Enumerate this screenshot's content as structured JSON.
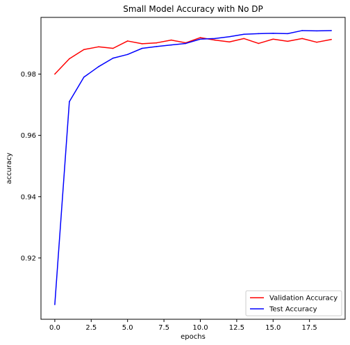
{
  "chart_data": {
    "type": "line",
    "title": "Small Model Accuracy with No DP",
    "xlabel": "epochs",
    "ylabel": "accuracy",
    "xlim": [
      -0.95,
      19.95
    ],
    "ylim": [
      0.9,
      0.9985
    ],
    "xticks": [
      0.0,
      2.5,
      5.0,
      7.5,
      10.0,
      12.5,
      15.0,
      17.5
    ],
    "xtick_labels": [
      "0.0",
      "2.5",
      "5.0",
      "7.5",
      "10.0",
      "12.5",
      "15.0",
      "17.5"
    ],
    "yticks": [
      0.92,
      0.94,
      0.96,
      0.98
    ],
    "ytick_labels": [
      "0.92",
      "0.94",
      "0.96",
      "0.98"
    ],
    "grid": false,
    "legend_position": "bottom-right",
    "x": [
      0,
      1,
      2,
      3,
      4,
      5,
      6,
      7,
      8,
      9,
      10,
      11,
      12,
      13,
      14,
      15,
      16,
      17,
      18,
      19
    ],
    "series": [
      {
        "name": "Validation Accuracy",
        "color": "#ff0000",
        "values": [
          0.98,
          0.985,
          0.988,
          0.9889,
          0.9884,
          0.9908,
          0.9899,
          0.9902,
          0.9911,
          0.9902,
          0.9919,
          0.9911,
          0.9905,
          0.9916,
          0.99,
          0.9914,
          0.9907,
          0.9916,
          0.9904,
          0.9913
        ]
      },
      {
        "name": "Test Accuracy",
        "color": "#0000ff",
        "values": [
          0.9048,
          0.971,
          0.979,
          0.9824,
          0.9852,
          0.9864,
          0.9884,
          0.989,
          0.9895,
          0.99,
          0.9914,
          0.9916,
          0.9922,
          0.993,
          0.9932,
          0.9933,
          0.9932,
          0.9942,
          0.9941,
          0.9942
        ]
      }
    ]
  }
}
